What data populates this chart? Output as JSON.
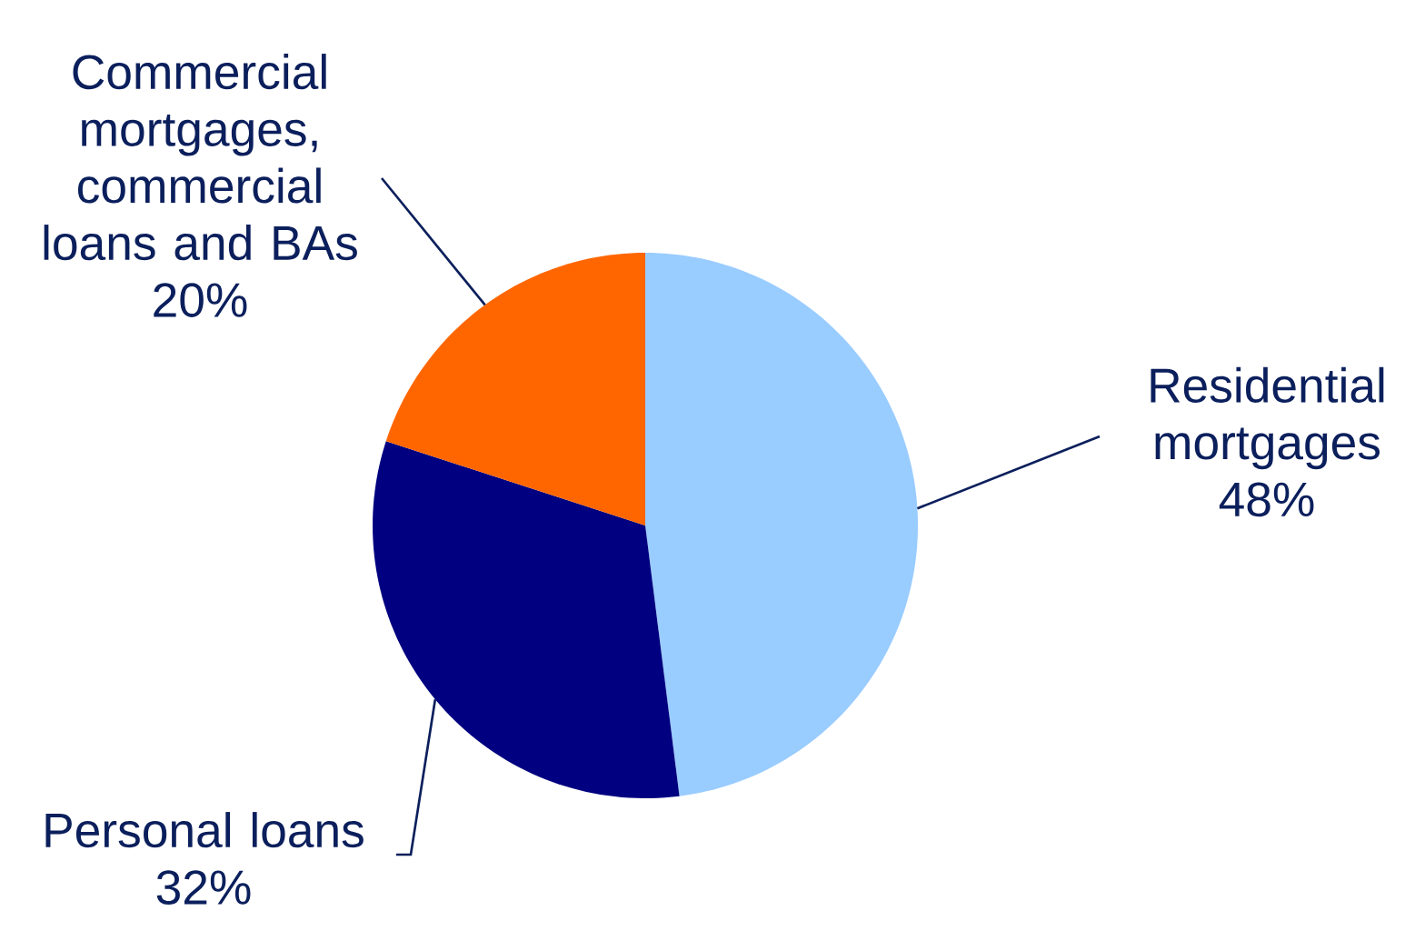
{
  "chart_data": {
    "type": "pie",
    "categories": [
      "Residential mortgages",
      "Personal loans",
      "Commercial mortgages, commercial loans and BAs"
    ],
    "values": [
      48,
      32,
      20
    ],
    "colors": [
      "#99ccff",
      "#000080",
      "#ff6600"
    ],
    "value_labels": [
      "48%",
      "32%",
      "20%"
    ]
  }
}
